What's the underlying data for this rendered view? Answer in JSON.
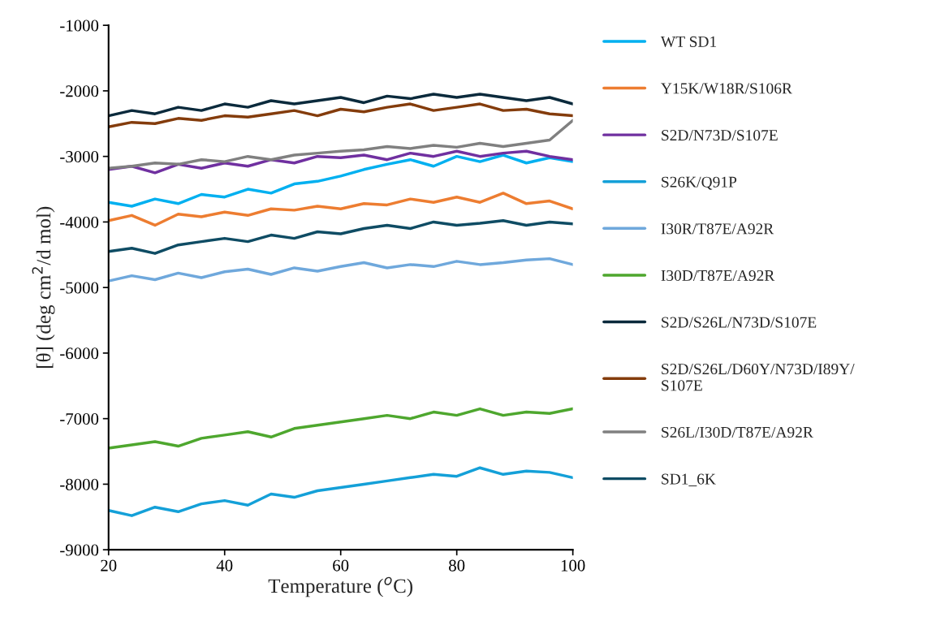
{
  "chart_data": {
    "type": "line",
    "xlabel": "Temperature ($^{o}$C)",
    "ylabel": "[θ] (deg cm$^{2}$/d mol)",
    "x": [
      20,
      24,
      28,
      32,
      36,
      40,
      44,
      48,
      52,
      56,
      60,
      64,
      68,
      72,
      76,
      80,
      84,
      88,
      92,
      96,
      100
    ],
    "xlim": [
      20,
      100
    ],
    "xticks": [
      20,
      40,
      60,
      80,
      100
    ],
    "ylim": [
      -9000,
      -1000
    ],
    "yticks": [
      -9000,
      -8000,
      -7000,
      -6000,
      -5000,
      -4000,
      -3000,
      -2000,
      -1000
    ],
    "grid": false,
    "legend": "right",
    "marker": "none",
    "line_style": "solid",
    "series": [
      {
        "name": "WT SD1",
        "color": "#00b0f0",
        "values": [
          -3700,
          -3760,
          -3650,
          -3720,
          -3580,
          -3620,
          -3500,
          -3560,
          -3420,
          -3380,
          -3300,
          -3200,
          -3120,
          -3050,
          -3150,
          -3000,
          -3080,
          -2980,
          -3100,
          -3020,
          -3080
        ]
      },
      {
        "name": "Y15K/W18R/S106R",
        "color": "#ed7d31",
        "values": [
          -3980,
          -3900,
          -4050,
          -3880,
          -3920,
          -3850,
          -3900,
          -3800,
          -3820,
          -3760,
          -3800,
          -3720,
          -3740,
          -3650,
          -3700,
          -3620,
          -3700,
          -3560,
          -3720,
          -3680,
          -3800
        ]
      },
      {
        "name": "S2D/N73D/S107E",
        "color": "#7030a0",
        "values": [
          -3200,
          -3150,
          -3250,
          -3120,
          -3180,
          -3100,
          -3150,
          -3050,
          -3100,
          -3000,
          -3020,
          -2980,
          -3050,
          -2950,
          -3000,
          -2920,
          -3000,
          -2950,
          -2920,
          -3000,
          -3050
        ]
      },
      {
        "name": "S26K/Q91P",
        "color": "#14a0d8",
        "values": [
          -8400,
          -8480,
          -8350,
          -8420,
          -8300,
          -8250,
          -8320,
          -8150,
          -8200,
          -8100,
          -8050,
          -8000,
          -7950,
          -7900,
          -7850,
          -7880,
          -7750,
          -7850,
          -7800,
          -7820,
          -7900
        ]
      },
      {
        "name": "I30R/T87E/A92R",
        "color": "#6fa8dc",
        "values": [
          -4900,
          -4820,
          -4880,
          -4780,
          -4850,
          -4760,
          -4720,
          -4800,
          -4700,
          -4750,
          -4680,
          -4620,
          -4700,
          -4650,
          -4680,
          -4600,
          -4650,
          -4620,
          -4580,
          -4560,
          -4650
        ]
      },
      {
        "name": "I30D/T87E/A92R",
        "color": "#4ea72e",
        "values": [
          -7450,
          -7400,
          -7350,
          -7420,
          -7300,
          -7250,
          -7200,
          -7280,
          -7150,
          -7100,
          -7050,
          -7000,
          -6950,
          -7000,
          -6900,
          -6950,
          -6850,
          -6950,
          -6900,
          -6920,
          -6850
        ]
      },
      {
        "name": "S2D/S26L/N73D/S107E",
        "color": "#0b2a3c",
        "values": [
          -2380,
          -2300,
          -2350,
          -2250,
          -2300,
          -2200,
          -2250,
          -2150,
          -2200,
          -2150,
          -2100,
          -2180,
          -2080,
          -2120,
          -2050,
          -2100,
          -2050,
          -2100,
          -2150,
          -2100,
          -2200
        ]
      },
      {
        "name": "S2D/S26L/D60Y/N73D/I89Y/\nS107E",
        "color": "#843c0c",
        "values": [
          -2550,
          -2480,
          -2500,
          -2420,
          -2450,
          -2380,
          -2400,
          -2350,
          -2300,
          -2380,
          -2280,
          -2320,
          -2250,
          -2200,
          -2300,
          -2250,
          -2200,
          -2300,
          -2280,
          -2350,
          -2380
        ]
      },
      {
        "name": "S26L/I30D/T87E/A92R",
        "color": "#808080",
        "values": [
          -3180,
          -3150,
          -3100,
          -3120,
          -3050,
          -3080,
          -3000,
          -3050,
          -2980,
          -2950,
          -2920,
          -2900,
          -2850,
          -2880,
          -2830,
          -2860,
          -2800,
          -2850,
          -2800,
          -2750,
          -2450
        ]
      },
      {
        "name": "SD1_6K",
        "color": "#0f4c64",
        "values": [
          -4450,
          -4400,
          -4480,
          -4350,
          -4300,
          -4250,
          -4300,
          -4200,
          -4250,
          -4150,
          -4180,
          -4100,
          -4050,
          -4100,
          -4000,
          -4050,
          -4020,
          -3980,
          -4050,
          -4000,
          -4030
        ]
      }
    ]
  }
}
